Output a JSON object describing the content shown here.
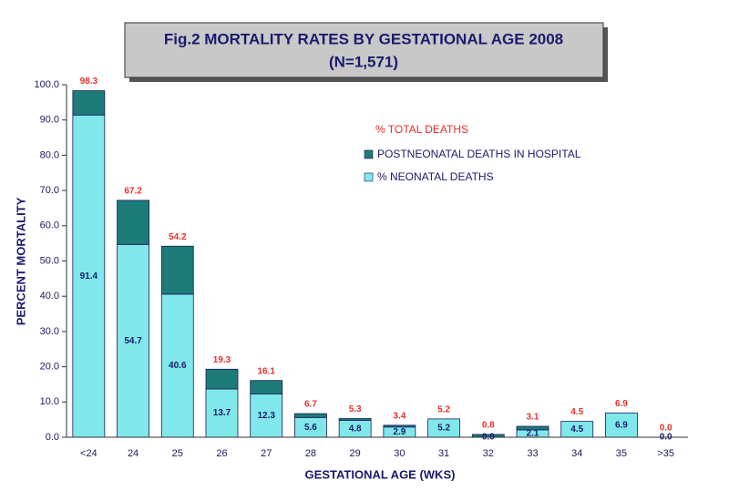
{
  "chart_data": {
    "type": "stacked_bar",
    "title": "Fig.2 MORTALITY RATES BY GESTATIONAL AGE 2008",
    "subtitle": "(N=1,571)",
    "x_label": "GESTATIONAL AGE (WKS)",
    "y_label": "PERCENT MORTALITY",
    "categories": [
      "<24",
      "24",
      "25",
      "26",
      "27",
      "28",
      "29",
      "30",
      "31",
      "32",
      "33",
      "34",
      "35",
      ">35"
    ],
    "series": [
      {
        "name": "% NEONATAL DEATHS",
        "color": "#80e8ea",
        "values": [
          91.4,
          54.7,
          40.6,
          13.7,
          12.3,
          5.6,
          4.8,
          2.9,
          5.2,
          0.0,
          2.1,
          4.5,
          6.9,
          0.0
        ],
        "value_labels": [
          "91.4",
          "54.7",
          "40.6",
          "13.7",
          "12.3",
          "5.6",
          "4.8",
          "2.9",
          "5.2",
          "0.0",
          "2.1",
          "4.5",
          "6.9",
          "0.0"
        ]
      },
      {
        "name": "POSTNEONATAL DEATHS IN HOSPITAL",
        "color": "#1d7b78",
        "values": [
          6.9,
          12.5,
          13.6,
          5.6,
          3.8,
          1.1,
          0.5,
          0.5,
          0.0,
          0.8,
          1.0,
          0.0,
          0.0,
          0.0
        ]
      }
    ],
    "totals": {
      "name": "% TOTAL DEATHS",
      "color": "#e8302a",
      "values": [
        98.3,
        67.2,
        54.2,
        19.3,
        16.1,
        6.7,
        5.3,
        3.4,
        5.2,
        0.8,
        3.1,
        4.5,
        6.9,
        0.0
      ],
      "value_labels": [
        "98.3",
        "67.2",
        "54.2",
        "19.3",
        "16.1",
        "6.7",
        "5.3",
        "3.4",
        "5.2",
        "0.8",
        "3.1",
        "4.5",
        "6.9",
        "0.0"
      ]
    },
    "ylim": [
      0,
      100
    ],
    "yticks": [
      {
        "value": 0,
        "label": "0.0"
      },
      {
        "value": 10,
        "label": "10.0"
      },
      {
        "value": 20,
        "label": "20.0"
      },
      {
        "value": 30,
        "label": "30.0"
      },
      {
        "value": 40,
        "label": "40.0"
      },
      {
        "value": 50,
        "label": "50.0"
      },
      {
        "value": 60,
        "label": "60.0"
      },
      {
        "value": 70,
        "label": "70.0"
      },
      {
        "value": 80,
        "label": "80.0"
      },
      {
        "value": 90,
        "label": "90.0"
      },
      {
        "value": 100,
        "label": "100.0"
      }
    ],
    "grid": false
  }
}
